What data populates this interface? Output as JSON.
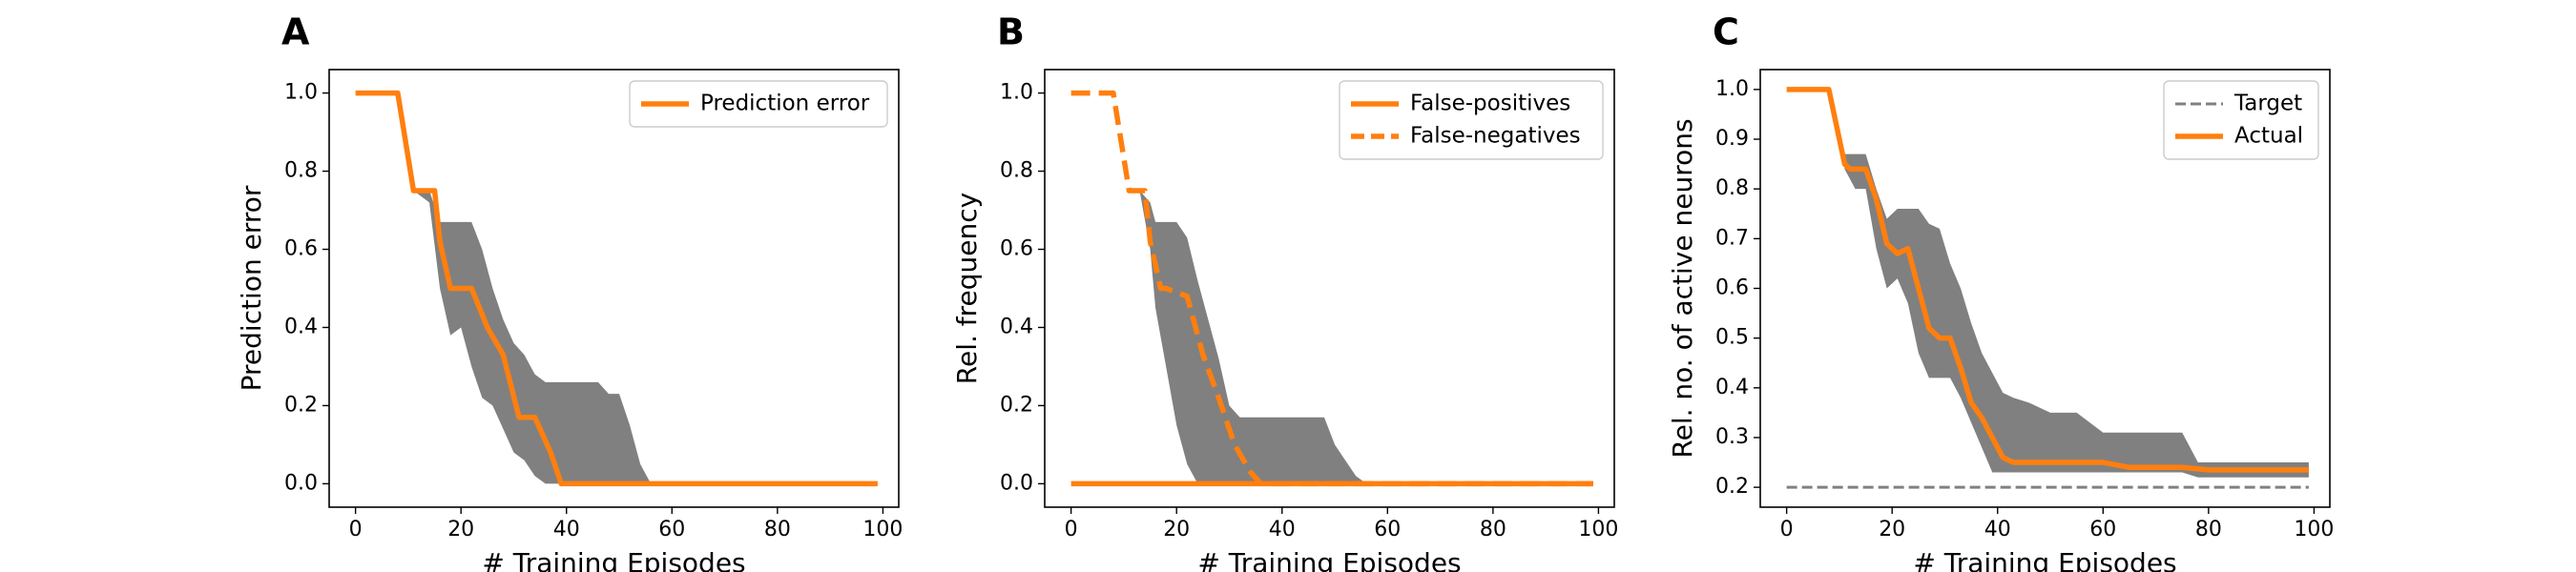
{
  "chart_data": [
    {
      "type": "line",
      "panel_label": "A",
      "xlabel": "# Training Episodes",
      "ylabel": "Prediction error",
      "xlim": [
        -5,
        103
      ],
      "ylim": [
        -0.06,
        1.06
      ],
      "xticks": [
        0,
        20,
        40,
        60,
        80,
        100
      ],
      "yticks": [
        0.0,
        0.2,
        0.4,
        0.6,
        0.8,
        1.0
      ],
      "ytick_labels": [
        "0.0",
        "0.2",
        "0.4",
        "0.6",
        "0.8",
        "1.0"
      ],
      "grid": false,
      "legend_position": "top-right",
      "series": [
        {
          "name": "Prediction error",
          "style": "solid",
          "color": "#ff7f0e",
          "x": [
            0,
            8,
            11,
            15,
            16,
            18,
            22,
            25,
            28,
            31,
            34,
            37,
            39,
            56,
            99
          ],
          "y": [
            1.0,
            1.0,
            0.75,
            0.75,
            0.62,
            0.5,
            0.5,
            0.4,
            0.33,
            0.17,
            0.17,
            0.08,
            0.0,
            0.0,
            0.0
          ]
        }
      ],
      "band": {
        "color": "#808080",
        "x": [
          11,
          14,
          16,
          18,
          20,
          22,
          24,
          26,
          28,
          30,
          32,
          34,
          36,
          38,
          40,
          42,
          44,
          46,
          48,
          50,
          52,
          54,
          56
        ],
        "upper": [
          0.75,
          0.75,
          0.67,
          0.67,
          0.67,
          0.67,
          0.6,
          0.5,
          0.42,
          0.36,
          0.33,
          0.28,
          0.26,
          0.26,
          0.26,
          0.26,
          0.26,
          0.26,
          0.23,
          0.23,
          0.15,
          0.05,
          0.0
        ],
        "lower": [
          0.75,
          0.72,
          0.5,
          0.38,
          0.4,
          0.3,
          0.22,
          0.2,
          0.14,
          0.08,
          0.06,
          0.02,
          0.0,
          0.0,
          0.0,
          0.0,
          0.0,
          0.0,
          0.0,
          0.0,
          0.0,
          0.0,
          0.0
        ]
      }
    },
    {
      "type": "line",
      "panel_label": "B",
      "xlabel": "# Training Episodes",
      "ylabel": "Rel. frequency",
      "xlim": [
        -5,
        103
      ],
      "ylim": [
        -0.06,
        1.06
      ],
      "xticks": [
        0,
        20,
        40,
        60,
        80,
        100
      ],
      "yticks": [
        0.0,
        0.2,
        0.4,
        0.6,
        0.8,
        1.0
      ],
      "ytick_labels": [
        "0.0",
        "0.2",
        "0.4",
        "0.6",
        "0.8",
        "1.0"
      ],
      "grid": false,
      "legend_position": "top-right",
      "series": [
        {
          "name": "False-positives",
          "style": "solid",
          "color": "#ff7f0e",
          "x": [
            0,
            99
          ],
          "y": [
            0.0,
            0.0
          ]
        },
        {
          "name": "False-negatives",
          "style": "dashed",
          "color": "#ff7f0e",
          "x": [
            0,
            8,
            11,
            14,
            15,
            17,
            18,
            22,
            25,
            28,
            31,
            34,
            36,
            40,
            99
          ],
          "y": [
            1.0,
            1.0,
            0.75,
            0.75,
            0.62,
            0.5,
            0.5,
            0.48,
            0.33,
            0.22,
            0.1,
            0.03,
            0.0,
            0.0,
            0.0
          ]
        }
      ],
      "band": {
        "color": "#808080",
        "x": [
          13,
          15,
          16,
          18,
          20,
          22,
          24,
          26,
          28,
          30,
          32,
          34,
          36,
          38,
          40,
          42,
          44,
          46,
          48,
          50,
          52,
          54,
          56
        ],
        "upper": [
          0.75,
          0.72,
          0.67,
          0.67,
          0.67,
          0.63,
          0.52,
          0.42,
          0.32,
          0.2,
          0.17,
          0.17,
          0.17,
          0.17,
          0.17,
          0.17,
          0.17,
          0.17,
          0.17,
          0.1,
          0.06,
          0.02,
          0.0
        ],
        "lower": [
          0.75,
          0.6,
          0.45,
          0.3,
          0.15,
          0.05,
          0.0,
          0.0,
          0.0,
          0.0,
          0.0,
          0.0,
          0.0,
          0.0,
          0.0,
          0.0,
          0.0,
          0.0,
          0.0,
          0.0,
          0.0,
          0.0,
          0.0
        ]
      }
    },
    {
      "type": "line",
      "panel_label": "C",
      "xlabel": "# Training Episodes",
      "ylabel": "Rel. no. of active neurons",
      "xlim": [
        -5,
        103
      ],
      "ylim": [
        0.16,
        1.04
      ],
      "xticks": [
        0,
        20,
        40,
        60,
        80,
        100
      ],
      "yticks": [
        0.2,
        0.3,
        0.4,
        0.5,
        0.6,
        0.7,
        0.8,
        0.9,
        1.0
      ],
      "ytick_labels": [
        "0.2",
        "0.3",
        "0.4",
        "0.5",
        "0.6",
        "0.7",
        "0.8",
        "0.9",
        "1.0"
      ],
      "grid": false,
      "legend_position": "top-right",
      "series": [
        {
          "name": "Target",
          "style": "dashed",
          "color": "#808080",
          "x": [
            0,
            99
          ],
          "y": [
            0.2,
            0.2
          ]
        },
        {
          "name": "Actual",
          "style": "solid",
          "color": "#ff7f0e",
          "x": [
            0,
            8,
            11,
            12,
            15,
            17,
            19,
            21,
            23,
            25,
            27,
            29,
            31,
            33,
            35,
            37,
            39,
            41,
            43,
            50,
            60,
            65,
            75,
            80,
            99
          ],
          "y": [
            1.0,
            1.0,
            0.85,
            0.84,
            0.84,
            0.78,
            0.69,
            0.67,
            0.68,
            0.6,
            0.52,
            0.5,
            0.5,
            0.44,
            0.37,
            0.34,
            0.3,
            0.26,
            0.25,
            0.25,
            0.25,
            0.24,
            0.24,
            0.235,
            0.235
          ]
        }
      ],
      "band": {
        "color": "#808080",
        "x": [
          11,
          13,
          15,
          17,
          19,
          21,
          23,
          25,
          27,
          29,
          31,
          33,
          35,
          37,
          39,
          41,
          43,
          46,
          50,
          55,
          60,
          65,
          70,
          75,
          78,
          80,
          99
        ],
        "upper": [
          0.87,
          0.87,
          0.87,
          0.8,
          0.74,
          0.76,
          0.76,
          0.76,
          0.73,
          0.72,
          0.65,
          0.6,
          0.53,
          0.47,
          0.43,
          0.39,
          0.38,
          0.37,
          0.35,
          0.35,
          0.31,
          0.31,
          0.31,
          0.31,
          0.25,
          0.25,
          0.25
        ],
        "lower": [
          0.84,
          0.8,
          0.8,
          0.68,
          0.6,
          0.62,
          0.57,
          0.47,
          0.42,
          0.42,
          0.42,
          0.38,
          0.33,
          0.28,
          0.23,
          0.23,
          0.23,
          0.23,
          0.23,
          0.23,
          0.23,
          0.23,
          0.23,
          0.23,
          0.22,
          0.22,
          0.22
        ]
      }
    }
  ]
}
